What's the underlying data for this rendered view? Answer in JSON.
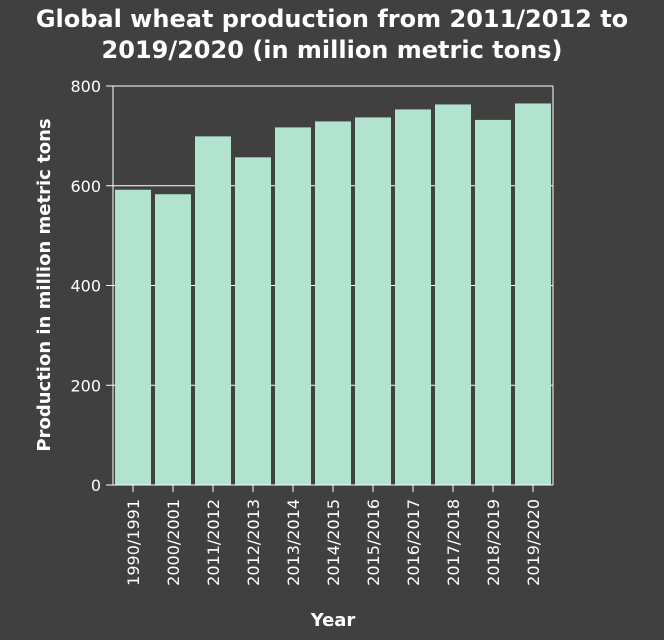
{
  "chart_data": {
    "type": "bar",
    "title_line1": "Global wheat production from 2011/2012 to",
    "title_line2": "2019/2020 (in million metric tons)",
    "xlabel": "Year",
    "ylabel": "Production in million metric tons",
    "categories": [
      "1990/1991",
      "2000/2001",
      "2011/2012",
      "2012/2013",
      "2013/2014",
      "2014/2015",
      "2015/2016",
      "2016/2017",
      "2017/2018",
      "2018/2019",
      "2019/2020"
    ],
    "values": [
      592,
      583,
      699,
      657,
      717,
      729,
      737,
      753,
      763,
      732,
      765
    ],
    "ylim": [
      0,
      800
    ],
    "yticks": [
      0,
      200,
      400,
      600,
      800
    ],
    "grid": true,
    "colors": {
      "bar": "#b2e3cf",
      "background": "#404040",
      "grid": "#ffffff"
    }
  }
}
